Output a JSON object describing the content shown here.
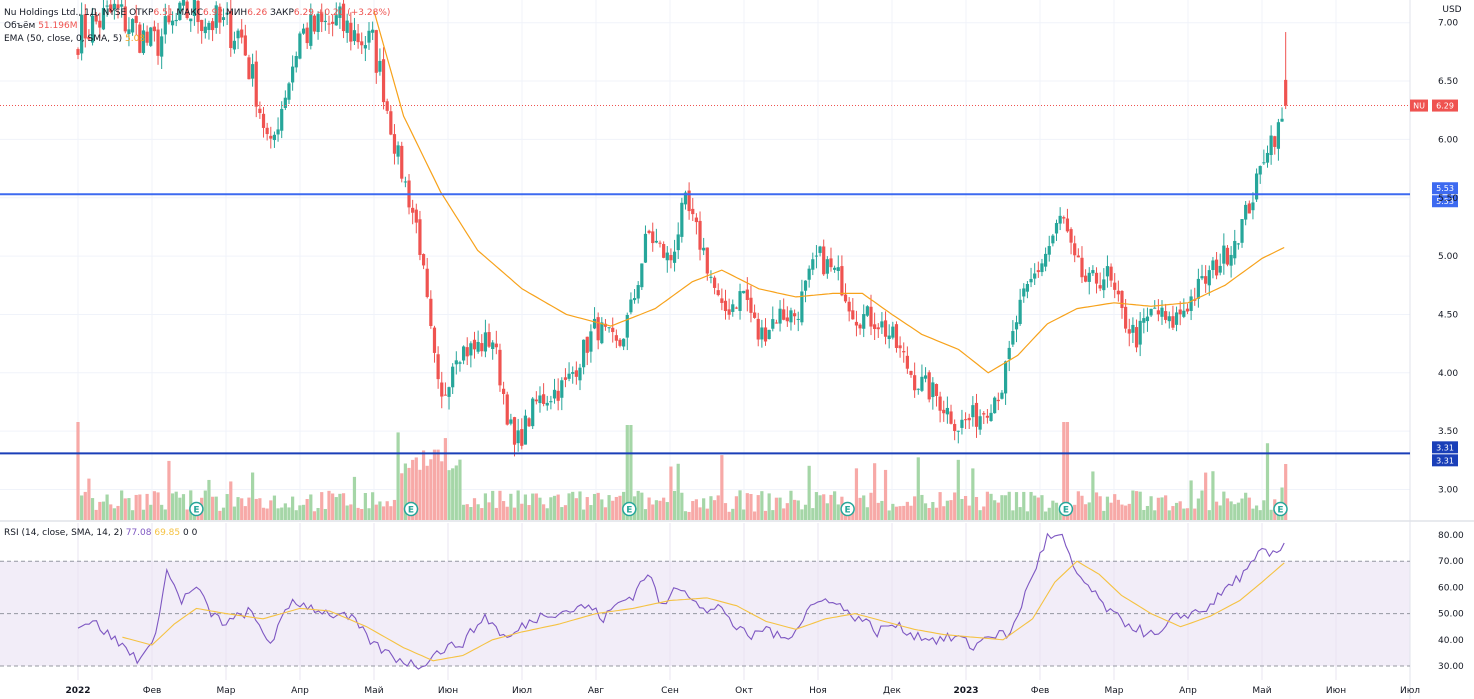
{
  "legend": {
    "symbol": "Nu Holdings Ltd., 1Д, NYSE",
    "open_label": "ОТКР",
    "open_value": "6.51",
    "high_label": "МАКС",
    "high_value": "6.92",
    "low_label": "МИН",
    "low_value": "6.26",
    "close_label": "ЗАКР",
    "close_value": "6.29",
    "change": "+0.20 (+3.28%)",
    "volume_label": "Объём",
    "volume_value": "51.196M",
    "ema_label": "EMA (50, close, 0, SMA, 5)",
    "ema_value": "5.08",
    "rsi_label": "RSI (14, close, SMA, 14, 2)",
    "rsi_value": "77.08",
    "rsi_sma_value": "69.85",
    "rsi_extra1": "0",
    "rsi_extra2": "0"
  },
  "chart_data": [
    {
      "type": "candlestick",
      "title": "Nu Holdings Ltd., 1Д, NYSE",
      "currency": "USD",
      "ylim": [
        2.75,
        7.05
      ],
      "y_ticks": [
        "3.00",
        "3.50",
        "4.00",
        "4.50",
        "5.00",
        "5.50",
        "6.00",
        "6.50",
        "7.00"
      ],
      "x_labels": [
        "2022",
        "Фев",
        "Мар",
        "Апр",
        "Май",
        "Июн",
        "Июл",
        "Авг",
        "Сен",
        "Окт",
        "Ноя",
        "Дек",
        "2023",
        "Фев",
        "Мар",
        "Апр",
        "Май",
        "Июн",
        "Июл"
      ],
      "price_tag": {
        "symbol": "NU",
        "value": "6.29"
      },
      "levels": [
        {
          "value": 5.53,
          "label": "5.53",
          "color": "#3d6af0"
        },
        {
          "value": 3.31,
          "label": "3.31",
          "color": "#1a3fb8"
        }
      ],
      "earnings_marker": "E",
      "earnings_months": [
        1.6,
        4.5,
        7.45,
        10.4,
        13.35,
        16.25
      ],
      "close_anchors": [
        [
          0,
          6.9
        ],
        [
          0.5,
          7.1
        ],
        [
          1,
          6.8
        ],
        [
          1.5,
          7.1
        ],
        [
          2.2,
          6.9
        ],
        [
          2.6,
          5.9
        ],
        [
          3,
          6.9
        ],
        [
          3.5,
          7.0
        ],
        [
          4,
          6.8
        ],
        [
          4.3,
          5.9
        ],
        [
          4.6,
          5.2
        ],
        [
          4.75,
          4.4
        ],
        [
          4.9,
          3.7
        ],
        [
          5.1,
          4.2
        ],
        [
          5.35,
          4.2
        ],
        [
          5.6,
          4.3
        ],
        [
          5.9,
          3.35
        ],
        [
          6.2,
          3.75
        ],
        [
          6.6,
          3.9
        ],
        [
          7.0,
          4.4
        ],
        [
          7.3,
          4.2
        ],
        [
          7.5,
          4.6
        ],
        [
          7.7,
          5.2
        ],
        [
          8.0,
          4.95
        ],
        [
          8.2,
          5.45
        ],
        [
          8.45,
          5.05
        ],
        [
          8.7,
          4.5
        ],
        [
          9.0,
          4.7
        ],
        [
          9.2,
          4.3
        ],
        [
          9.45,
          4.5
        ],
        [
          9.7,
          4.5
        ],
        [
          10.0,
          5.0
        ],
        [
          10.3,
          4.8
        ],
        [
          10.5,
          4.5
        ],
        [
          10.8,
          4.45
        ],
        [
          11.0,
          4.3
        ],
        [
          11.3,
          3.95
        ],
        [
          11.6,
          3.8
        ],
        [
          11.9,
          3.55
        ],
        [
          12.2,
          3.65
        ],
        [
          12.5,
          3.9
        ],
        [
          12.7,
          4.5
        ],
        [
          12.9,
          4.8
        ],
        [
          13.1,
          5.05
        ],
        [
          13.3,
          5.35
        ],
        [
          13.45,
          4.95
        ],
        [
          13.65,
          4.75
        ],
        [
          13.9,
          4.85
        ],
        [
          14.1,
          4.5
        ],
        [
          14.3,
          4.3
        ],
        [
          14.55,
          4.55
        ],
        [
          14.75,
          4.4
        ],
        [
          15.0,
          4.6
        ],
        [
          15.3,
          4.85
        ],
        [
          15.55,
          5.05
        ],
        [
          15.75,
          5.3
        ],
        [
          15.95,
          5.65
        ],
        [
          16.05,
          5.95
        ],
        [
          16.25,
          6.1
        ],
        [
          16.32,
          6.29
        ]
      ],
      "ema_anchors": [
        [
          4.0,
          7.1
        ],
        [
          4.4,
          6.2
        ],
        [
          4.9,
          5.55
        ],
        [
          5.4,
          5.05
        ],
        [
          6.0,
          4.72
        ],
        [
          6.6,
          4.5
        ],
        [
          7.2,
          4.4
        ],
        [
          7.8,
          4.55
        ],
        [
          8.3,
          4.78
        ],
        [
          8.7,
          4.88
        ],
        [
          9.2,
          4.72
        ],
        [
          9.7,
          4.65
        ],
        [
          10.2,
          4.68
        ],
        [
          10.6,
          4.68
        ],
        [
          11.0,
          4.5
        ],
        [
          11.4,
          4.33
        ],
        [
          11.9,
          4.2
        ],
        [
          12.3,
          4.0
        ],
        [
          12.7,
          4.15
        ],
        [
          13.1,
          4.42
        ],
        [
          13.5,
          4.55
        ],
        [
          14.0,
          4.6
        ],
        [
          14.5,
          4.57
        ],
        [
          15.0,
          4.6
        ],
        [
          15.5,
          4.75
        ],
        [
          16.0,
          4.98
        ],
        [
          16.32,
          5.08
        ]
      ],
      "volume_label": "Объём",
      "volume_value": "51.196M",
      "ema_label": "EMA (50, close, 0, SMA, 5)",
      "ema_value": "5.08"
    },
    {
      "type": "line",
      "title": "RSI (14, close, SMA, 14, 2)",
      "ylim": [
        27,
        84
      ],
      "y_ticks": [
        "30.00",
        "40.00",
        "50.00",
        "60.00",
        "70.00",
        "80.00"
      ],
      "band": [
        30,
        70
      ],
      "dashed_levels": [
        30,
        50,
        70
      ],
      "series": [
        {
          "name": "RSI",
          "color": "#7e57c2",
          "anchors": [
            [
              0,
              46
            ],
            [
              0.2,
              47
            ],
            [
              0.5,
              40
            ],
            [
              0.8,
              33
            ],
            [
              1.0,
              37
            ],
            [
              1.2,
              66
            ],
            [
              1.4,
              55
            ],
            [
              1.6,
              60
            ],
            [
              1.8,
              50
            ],
            [
              2.0,
              46
            ],
            [
              2.3,
              51
            ],
            [
              2.6,
              39
            ],
            [
              2.9,
              55
            ],
            [
              3.1,
              53
            ],
            [
              3.4,
              50
            ],
            [
              3.7,
              48
            ],
            [
              4.0,
              38
            ],
            [
              4.3,
              33
            ],
            [
              4.6,
              30
            ],
            [
              4.9,
              36
            ],
            [
              5.2,
              39
            ],
            [
              5.5,
              49
            ],
            [
              5.8,
              40
            ],
            [
              6.0,
              45
            ],
            [
              6.3,
              50
            ],
            [
              6.6,
              51
            ],
            [
              6.9,
              53
            ],
            [
              7.1,
              48
            ],
            [
              7.3,
              54
            ],
            [
              7.5,
              57
            ],
            [
              7.7,
              66
            ],
            [
              7.9,
              52
            ],
            [
              8.1,
              61
            ],
            [
              8.3,
              57
            ],
            [
              8.5,
              50
            ],
            [
              8.7,
              53
            ],
            [
              8.9,
              44
            ],
            [
              9.1,
              41
            ],
            [
              9.3,
              45
            ],
            [
              9.5,
              40
            ],
            [
              9.7,
              44
            ],
            [
              9.9,
              53
            ],
            [
              10.2,
              56
            ],
            [
              10.4,
              50
            ],
            [
              10.6,
              48
            ],
            [
              10.8,
              43
            ],
            [
              11.0,
              46
            ],
            [
              11.3,
              42
            ],
            [
              11.6,
              40
            ],
            [
              11.9,
              41
            ],
            [
              12.1,
              37
            ],
            [
              12.3,
              42
            ],
            [
              12.6,
              42
            ],
            [
              12.9,
              65
            ],
            [
              13.1,
              79
            ],
            [
              13.3,
              79
            ],
            [
              13.45,
              67
            ],
            [
              13.6,
              62
            ],
            [
              13.8,
              55
            ],
            [
              14.0,
              49
            ],
            [
              14.2,
              46
            ],
            [
              14.4,
              43
            ],
            [
              14.6,
              41
            ],
            [
              14.8,
              48
            ],
            [
              15.0,
              50
            ],
            [
              15.2,
              51
            ],
            [
              15.4,
              56
            ],
            [
              15.6,
              62
            ],
            [
              15.8,
              66
            ],
            [
              16.0,
              74
            ],
            [
              16.15,
              72
            ],
            [
              16.32,
              77
            ]
          ]
        },
        {
          "name": "SMA",
          "color": "#f5c242",
          "anchors": [
            [
              0.6,
              41
            ],
            [
              1.0,
              38
            ],
            [
              1.3,
              46
            ],
            [
              1.6,
              52
            ],
            [
              2.0,
              50
            ],
            [
              2.5,
              48
            ],
            [
              3.0,
              52
            ],
            [
              3.4,
              51
            ],
            [
              3.9,
              45
            ],
            [
              4.4,
              37
            ],
            [
              4.8,
              32
            ],
            [
              5.2,
              34
            ],
            [
              5.6,
              40
            ],
            [
              6.0,
              43
            ],
            [
              6.5,
              46
            ],
            [
              7.0,
              50
            ],
            [
              7.5,
              52
            ],
            [
              8.0,
              55
            ],
            [
              8.5,
              56
            ],
            [
              8.9,
              53
            ],
            [
              9.3,
              47
            ],
            [
              9.7,
              44
            ],
            [
              10.1,
              48
            ],
            [
              10.5,
              50
            ],
            [
              10.9,
              47
            ],
            [
              11.3,
              44
            ],
            [
              11.7,
              42
            ],
            [
              12.1,
              41
            ],
            [
              12.5,
              40
            ],
            [
              12.9,
              48
            ],
            [
              13.2,
              62
            ],
            [
              13.5,
              70
            ],
            [
              13.8,
              65
            ],
            [
              14.1,
              57
            ],
            [
              14.5,
              50
            ],
            [
              14.9,
              45
            ],
            [
              15.3,
              49
            ],
            [
              15.7,
              55
            ],
            [
              16.0,
              62
            ],
            [
              16.32,
              69.85
            ]
          ]
        }
      ]
    }
  ]
}
